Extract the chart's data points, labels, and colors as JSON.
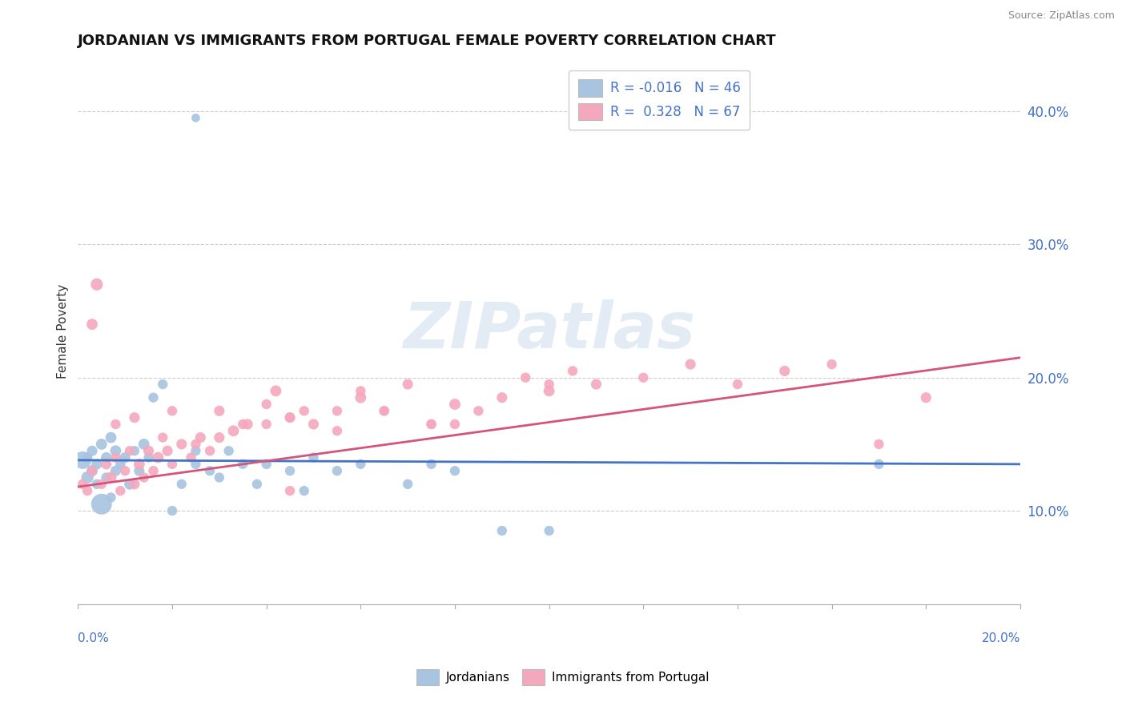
{
  "title": "JORDANIAN VS IMMIGRANTS FROM PORTUGAL FEMALE POVERTY CORRELATION CHART",
  "source": "Source: ZipAtlas.com",
  "ylabel": "Female Poverty",
  "right_ytick_vals": [
    0.1,
    0.2,
    0.3,
    0.4
  ],
  "right_ytick_labels": [
    "10.0%",
    "20.0%",
    "30.0%",
    "40.0%"
  ],
  "xmin": 0.0,
  "xmax": 0.2,
  "ymin": 0.03,
  "ymax": 0.44,
  "blue_R": -0.016,
  "blue_N": 46,
  "pink_R": 0.328,
  "pink_N": 67,
  "blue_color": "#a8c4e0",
  "pink_color": "#f4a8be",
  "blue_line_color": "#4472c4",
  "pink_line_color": "#d4547a",
  "watermark_text": "ZIPatlas",
  "blue_line_y0": 0.138,
  "blue_line_y1": 0.135,
  "pink_line_y0": 0.118,
  "pink_line_y1": 0.215,
  "blue_x": [
    0.001,
    0.002,
    0.002,
    0.003,
    0.003,
    0.004,
    0.004,
    0.005,
    0.005,
    0.006,
    0.006,
    0.007,
    0.007,
    0.008,
    0.008,
    0.009,
    0.01,
    0.011,
    0.012,
    0.013,
    0.014,
    0.015,
    0.016,
    0.018,
    0.02,
    0.022,
    0.025,
    0.025,
    0.028,
    0.03,
    0.032,
    0.035,
    0.038,
    0.04,
    0.045,
    0.048,
    0.05,
    0.055,
    0.06,
    0.07,
    0.075,
    0.08,
    0.09,
    0.1,
    0.025,
    0.17
  ],
  "blue_y": [
    0.138,
    0.14,
    0.125,
    0.145,
    0.13,
    0.12,
    0.135,
    0.15,
    0.105,
    0.125,
    0.14,
    0.155,
    0.11,
    0.13,
    0.145,
    0.135,
    0.14,
    0.12,
    0.145,
    0.13,
    0.15,
    0.14,
    0.185,
    0.195,
    0.1,
    0.12,
    0.135,
    0.145,
    0.13,
    0.125,
    0.145,
    0.135,
    0.12,
    0.135,
    0.13,
    0.115,
    0.14,
    0.13,
    0.135,
    0.12,
    0.135,
    0.13,
    0.085,
    0.085,
    0.395,
    0.135
  ],
  "blue_s": [
    250,
    80,
    120,
    90,
    100,
    80,
    90,
    100,
    350,
    80,
    90,
    100,
    80,
    90,
    100,
    80,
    90,
    100,
    80,
    90,
    100,
    80,
    80,
    80,
    80,
    80,
    80,
    80,
    80,
    80,
    80,
    80,
    80,
    80,
    80,
    80,
    80,
    80,
    80,
    80,
    80,
    80,
    80,
    80,
    60,
    80
  ],
  "pink_x": [
    0.001,
    0.002,
    0.003,
    0.004,
    0.005,
    0.006,
    0.007,
    0.008,
    0.009,
    0.01,
    0.011,
    0.012,
    0.013,
    0.014,
    0.015,
    0.016,
    0.017,
    0.018,
    0.019,
    0.02,
    0.022,
    0.024,
    0.026,
    0.028,
    0.03,
    0.033,
    0.036,
    0.04,
    0.042,
    0.045,
    0.048,
    0.05,
    0.055,
    0.06,
    0.065,
    0.07,
    0.075,
    0.08,
    0.085,
    0.09,
    0.095,
    0.1,
    0.105,
    0.11,
    0.12,
    0.13,
    0.14,
    0.15,
    0.16,
    0.17,
    0.18,
    0.003,
    0.008,
    0.012,
    0.02,
    0.03,
    0.04,
    0.025,
    0.035,
    0.045,
    0.055,
    0.065,
    0.075,
    0.06,
    0.08,
    0.1,
    0.045
  ],
  "pink_y": [
    0.12,
    0.115,
    0.13,
    0.27,
    0.12,
    0.135,
    0.125,
    0.14,
    0.115,
    0.13,
    0.145,
    0.12,
    0.135,
    0.125,
    0.145,
    0.13,
    0.14,
    0.155,
    0.145,
    0.135,
    0.15,
    0.14,
    0.155,
    0.145,
    0.155,
    0.16,
    0.165,
    0.165,
    0.19,
    0.17,
    0.175,
    0.165,
    0.16,
    0.185,
    0.175,
    0.195,
    0.165,
    0.18,
    0.175,
    0.185,
    0.2,
    0.19,
    0.205,
    0.195,
    0.2,
    0.21,
    0.195,
    0.205,
    0.21,
    0.15,
    0.185,
    0.24,
    0.165,
    0.17,
    0.175,
    0.175,
    0.18,
    0.15,
    0.165,
    0.17,
    0.175,
    0.175,
    0.165,
    0.19,
    0.165,
    0.195,
    0.115
  ],
  "pink_s": [
    80,
    80,
    90,
    120,
    80,
    90,
    100,
    80,
    80,
    80,
    80,
    90,
    100,
    80,
    90,
    80,
    100,
    80,
    90,
    80,
    90,
    80,
    90,
    80,
    90,
    100,
    90,
    80,
    100,
    90,
    80,
    90,
    80,
    100,
    80,
    90,
    80,
    100,
    80,
    90,
    80,
    100,
    80,
    90,
    80,
    90,
    80,
    90,
    80,
    80,
    90,
    100,
    80,
    90,
    80,
    90,
    80,
    80,
    80,
    80,
    80,
    80,
    80,
    80,
    80,
    80,
    80
  ]
}
